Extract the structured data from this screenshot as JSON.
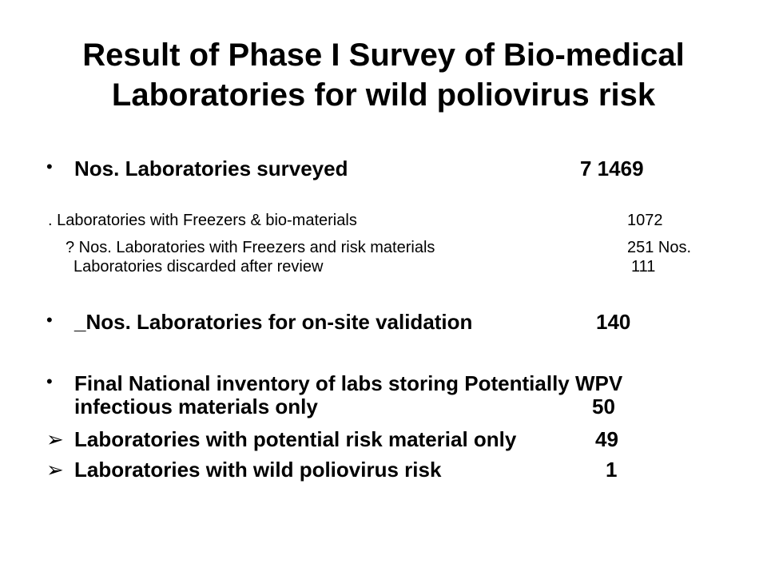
{
  "title": {
    "line1": "Result of Phase I Survey of Bio-medical",
    "line2": "Laboratories for wild poliovirus risk"
  },
  "items": {
    "surveyed": {
      "bullet": "•",
      "label": "Nos. Laboratories surveyed",
      "value": "7 1469"
    },
    "freezers": {
      "label": ". Laboratories with Freezers & bio-materials",
      "value": "1072"
    },
    "risk": {
      "label": "? Nos. Laboratories with Freezers and risk materials",
      "value": "251 Nos."
    },
    "discarded": {
      "label": "Laboratories discarded after review",
      "value": "111"
    },
    "onsite": {
      "bullet": "•",
      "label": "_Nos. Laboratories for on-site validation",
      "value": "140"
    },
    "final": {
      "bullet": "•",
      "line1": "Final  National  inventory of  labs storing Potentially WPV",
      "line2": "infectious materials only",
      "value": "50"
    },
    "potential": {
      "bullet": "➢",
      "label": "Laboratories with potential risk material only",
      "value": "49"
    },
    "wild": {
      "bullet": "➢",
      "label": "Laboratories with wild poliovirus risk",
      "value": "1"
    }
  }
}
